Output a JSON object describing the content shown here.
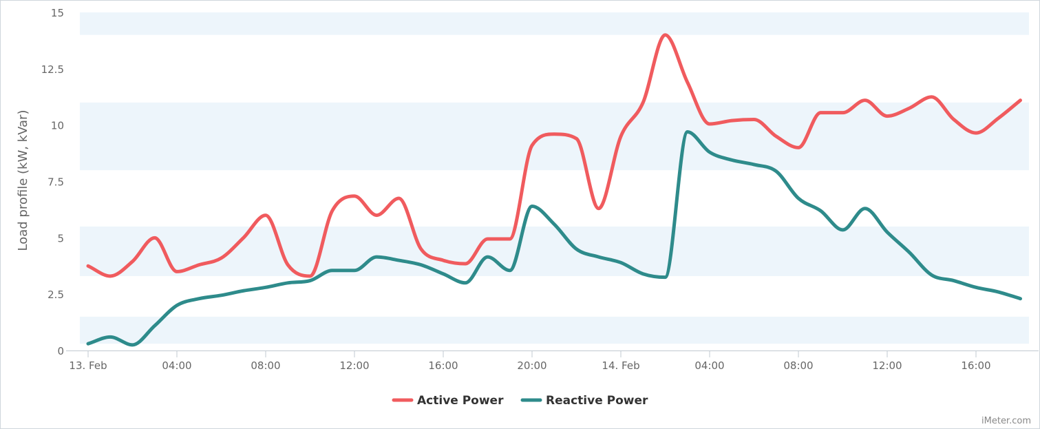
{
  "chart_data": {
    "type": "line",
    "title": "",
    "xlabel": "",
    "ylabel": "Load profile (kW, kVar)",
    "ylim": [
      0,
      15
    ],
    "y_ticks": [
      "0",
      "2.5",
      "5",
      "7.5",
      "10",
      "12.5",
      "15"
    ],
    "x_tick_labels": [
      "13. Feb",
      "04:00",
      "08:00",
      "12:00",
      "16:00",
      "20:00",
      "14. Feb",
      "04:00",
      "08:00",
      "12:00",
      "16:00"
    ],
    "x_hours": [
      0,
      1,
      2,
      3,
      4,
      5,
      6,
      7,
      8,
      9,
      10,
      11,
      12,
      13,
      14,
      15,
      16,
      17,
      18,
      19,
      20,
      21,
      22,
      23,
      24,
      25,
      26,
      27,
      28,
      29,
      30,
      31,
      32,
      33,
      34,
      35,
      36,
      37,
      38,
      39,
      40,
      41,
      42
    ],
    "bands": [
      [
        0.3,
        1.5
      ],
      [
        3.3,
        5.5
      ],
      [
        8.0,
        11.0
      ],
      [
        14.0,
        15.0
      ]
    ],
    "series": [
      {
        "name": "Active Power",
        "color": "#f05b5e",
        "values": [
          3.75,
          3.3,
          3.95,
          5.0,
          3.5,
          3.8,
          4.1,
          5.0,
          6.0,
          3.8,
          3.3,
          6.2,
          6.85,
          6.0,
          6.75,
          4.5,
          4.0,
          3.85,
          4.95,
          4.95,
          9.1,
          9.6,
          9.4,
          6.3,
          9.5,
          11.0,
          14.0,
          11.9,
          10.05,
          10.2,
          10.25,
          9.5,
          9.0,
          10.55,
          10.55,
          11.1,
          10.4,
          10.75,
          11.25,
          10.25,
          9.65,
          10.3,
          11.1
        ]
      },
      {
        "name": "Reactive Power",
        "color": "#2e8b8b",
        "values": [
          0.3,
          0.6,
          0.25,
          1.1,
          2.0,
          2.3,
          2.45,
          2.65,
          2.8,
          3.0,
          3.1,
          3.55,
          3.55,
          4.15,
          4.0,
          3.8,
          3.4,
          3.0,
          4.15,
          3.55,
          6.4,
          5.6,
          4.5,
          4.15,
          3.9,
          3.4,
          3.25,
          9.7,
          8.8,
          8.45,
          8.25,
          7.95,
          6.75,
          6.2,
          5.35,
          6.3,
          5.25,
          4.35,
          3.35,
          3.1,
          2.8,
          2.6,
          2.3
        ]
      }
    ],
    "legend_placement": "bottom-center",
    "grid": false
  },
  "credit": "iMeter.com"
}
